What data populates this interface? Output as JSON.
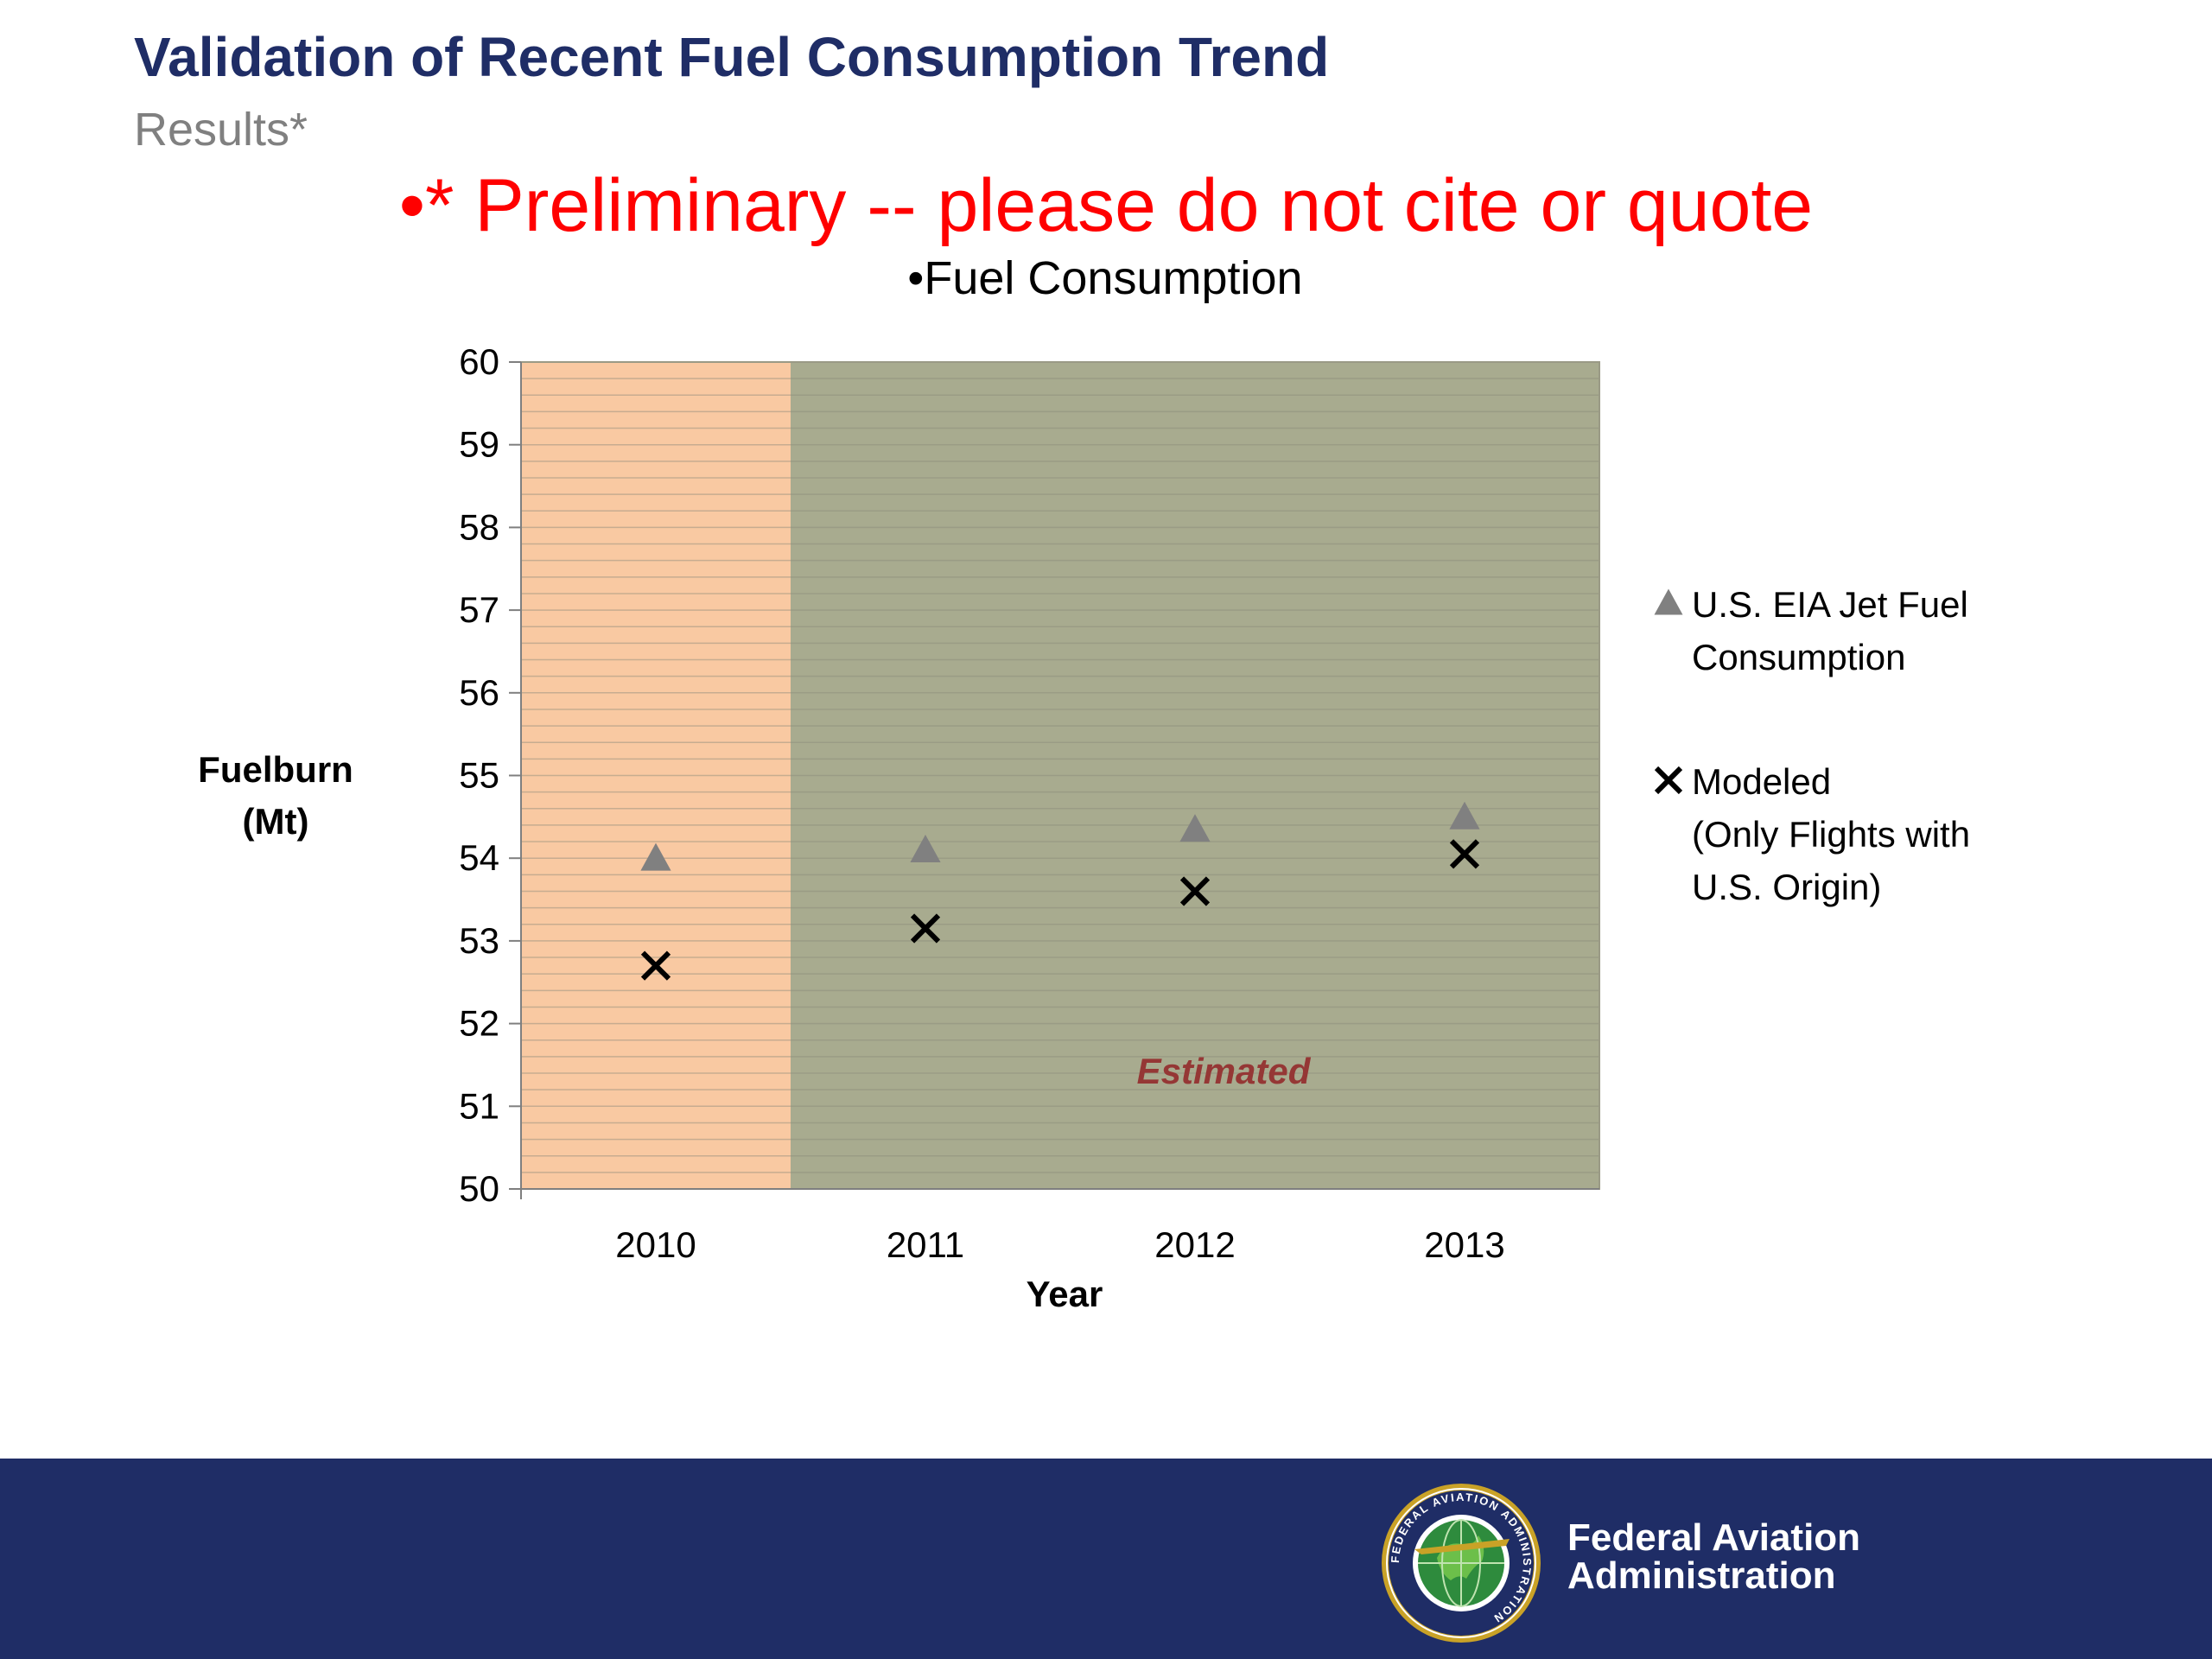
{
  "slide": {
    "title": "Validation of Recent Fuel Consumption Trend",
    "subtitle": "Results*",
    "warning": "•* Preliminary -- please do not cite or quote"
  },
  "chart_data": {
    "type": "scatter",
    "title": "•Fuel Consumption",
    "xlabel": "Year",
    "ylabel": [
      "Fuelburn",
      "(Mt)"
    ],
    "categories": [
      "2010",
      "2011",
      "2012",
      "2013"
    ],
    "ylim": [
      50,
      60
    ],
    "yticks": [
      50,
      51,
      52,
      53,
      54,
      55,
      56,
      57,
      58,
      59,
      60
    ],
    "series": [
      {
        "name": "U.S. EIA Jet Fuel Consumption",
        "legend_lines": [
          "U.S. EIA Jet Fuel",
          "Consumption"
        ],
        "marker": "triangle",
        "color": "#808080",
        "values": [
          54.0,
          54.1,
          54.35,
          54.5
        ]
      },
      {
        "name": "Modeled (Only Flights with U.S. Origin)",
        "legend_lines": [
          "Modeled",
          "(Only Flights with",
          "U.S. Origin)"
        ],
        "marker": "x",
        "color": "#000000",
        "values": [
          52.7,
          53.15,
          53.6,
          54.05
        ]
      }
    ],
    "regions": [
      {
        "from_category": "2010",
        "to_category": "2010",
        "color": "#f9c9a2",
        "label": ""
      },
      {
        "from_category": "2011",
        "to_category": "2013",
        "color": "#a8ab8f",
        "label": "Estimated",
        "label_color": "#953735"
      }
    ],
    "grid": "horizontal minor lines",
    "legend_position": "right"
  },
  "footer": {
    "org_line1": "Federal Aviation",
    "org_line2": "Administration",
    "seal_text": "FEDERAL AVIATION ADMINISTRATION",
    "color": "#1f2d66"
  }
}
